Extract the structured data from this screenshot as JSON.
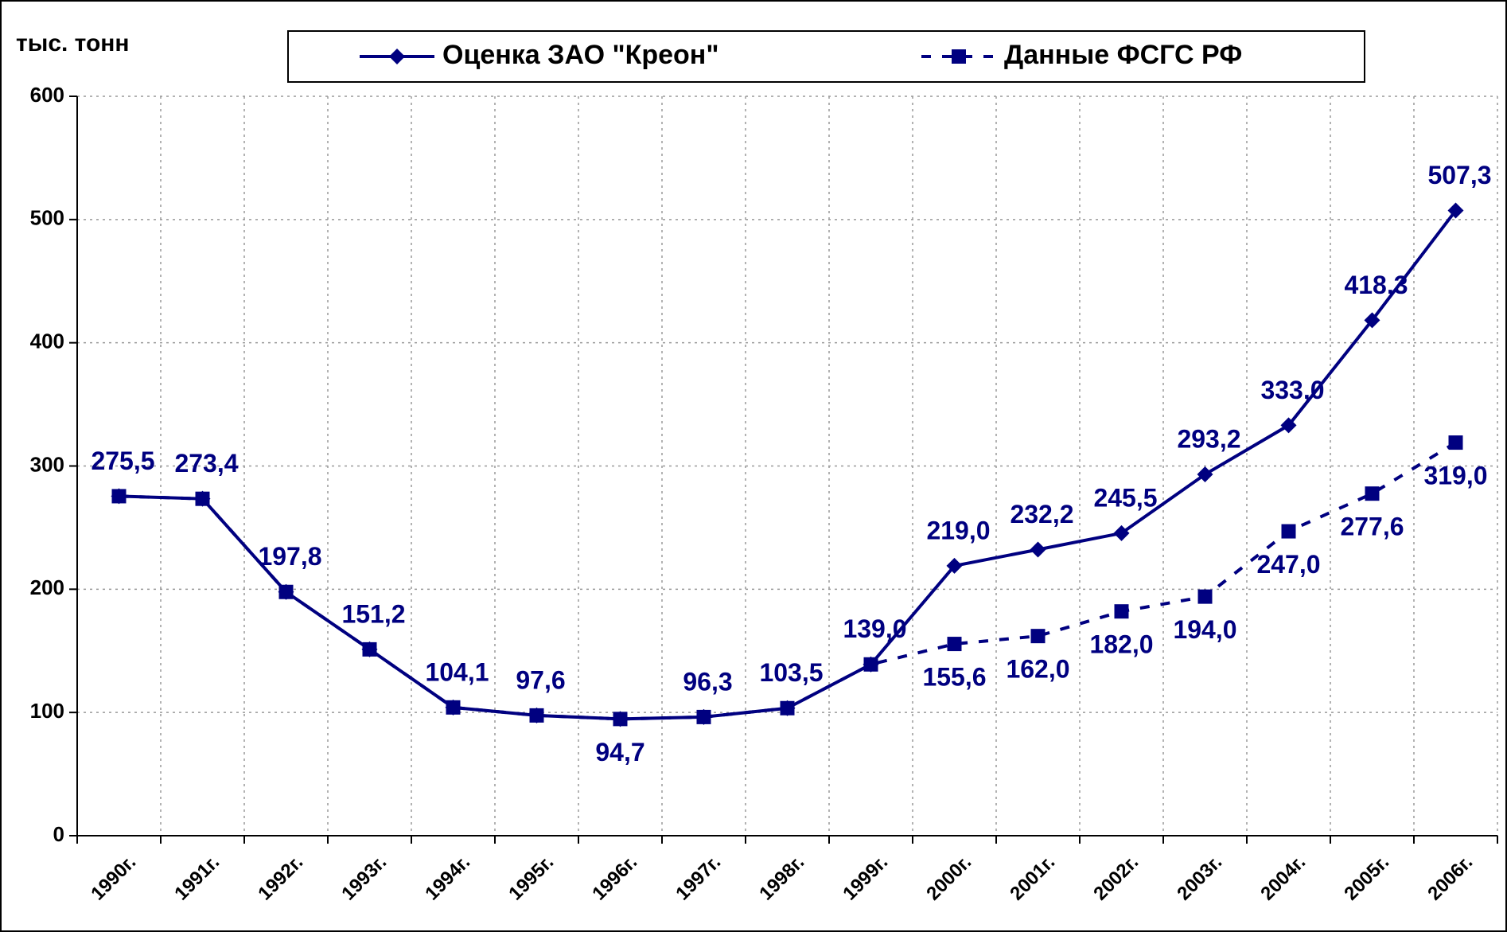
{
  "chart_data": {
    "type": "line",
    "y_label": "тыс. тонн",
    "categories": [
      "1990г.",
      "1991г.",
      "1992г.",
      "1993г.",
      "1994г.",
      "1995г.",
      "1996г.",
      "1997г.",
      "1998г.",
      "1999г.",
      "2000г.",
      "2001г.",
      "2002г.",
      "2003г.",
      "2004г.",
      "2005г.",
      "2006г."
    ],
    "series": [
      {
        "name": "Оценка ЗАО \"Креон\"",
        "color": "#000080",
        "marker": "diamond",
        "dash": false,
        "values": [
          275.5,
          273.4,
          197.8,
          151.2,
          104.1,
          97.6,
          94.7,
          96.3,
          103.5,
          139.0,
          219.0,
          232.2,
          245.5,
          293.2,
          333.0,
          418.3,
          507.3
        ],
        "value_labels": [
          "275,5",
          "273,4",
          "197,8",
          "151,2",
          "104,1",
          "97,6",
          "94,7",
          "96,3",
          "103,5",
          "139,0",
          "219,0",
          "232,2",
          "245,5",
          "293,2",
          "333,0",
          "418,3",
          "507,3"
        ]
      },
      {
        "name": "Данные ФСГС РФ",
        "color": "#000080",
        "marker": "square",
        "dash": true,
        "values": [
          275.5,
          273.4,
          197.8,
          151.2,
          104.1,
          97.6,
          94.7,
          96.3,
          103.5,
          139.0,
          155.6,
          162.0,
          182.0,
          194.0,
          247.0,
          277.6,
          319.0
        ],
        "value_labels": [
          null,
          null,
          null,
          null,
          null,
          null,
          null,
          null,
          null,
          null,
          "155,6",
          "162,0",
          "182,0",
          "194,0",
          "247,0",
          "277,6",
          "319,0"
        ]
      }
    ],
    "ylim": [
      0,
      600
    ],
    "yticks": [
      0,
      100,
      200,
      300,
      400,
      500,
      600
    ],
    "grid": true
  }
}
